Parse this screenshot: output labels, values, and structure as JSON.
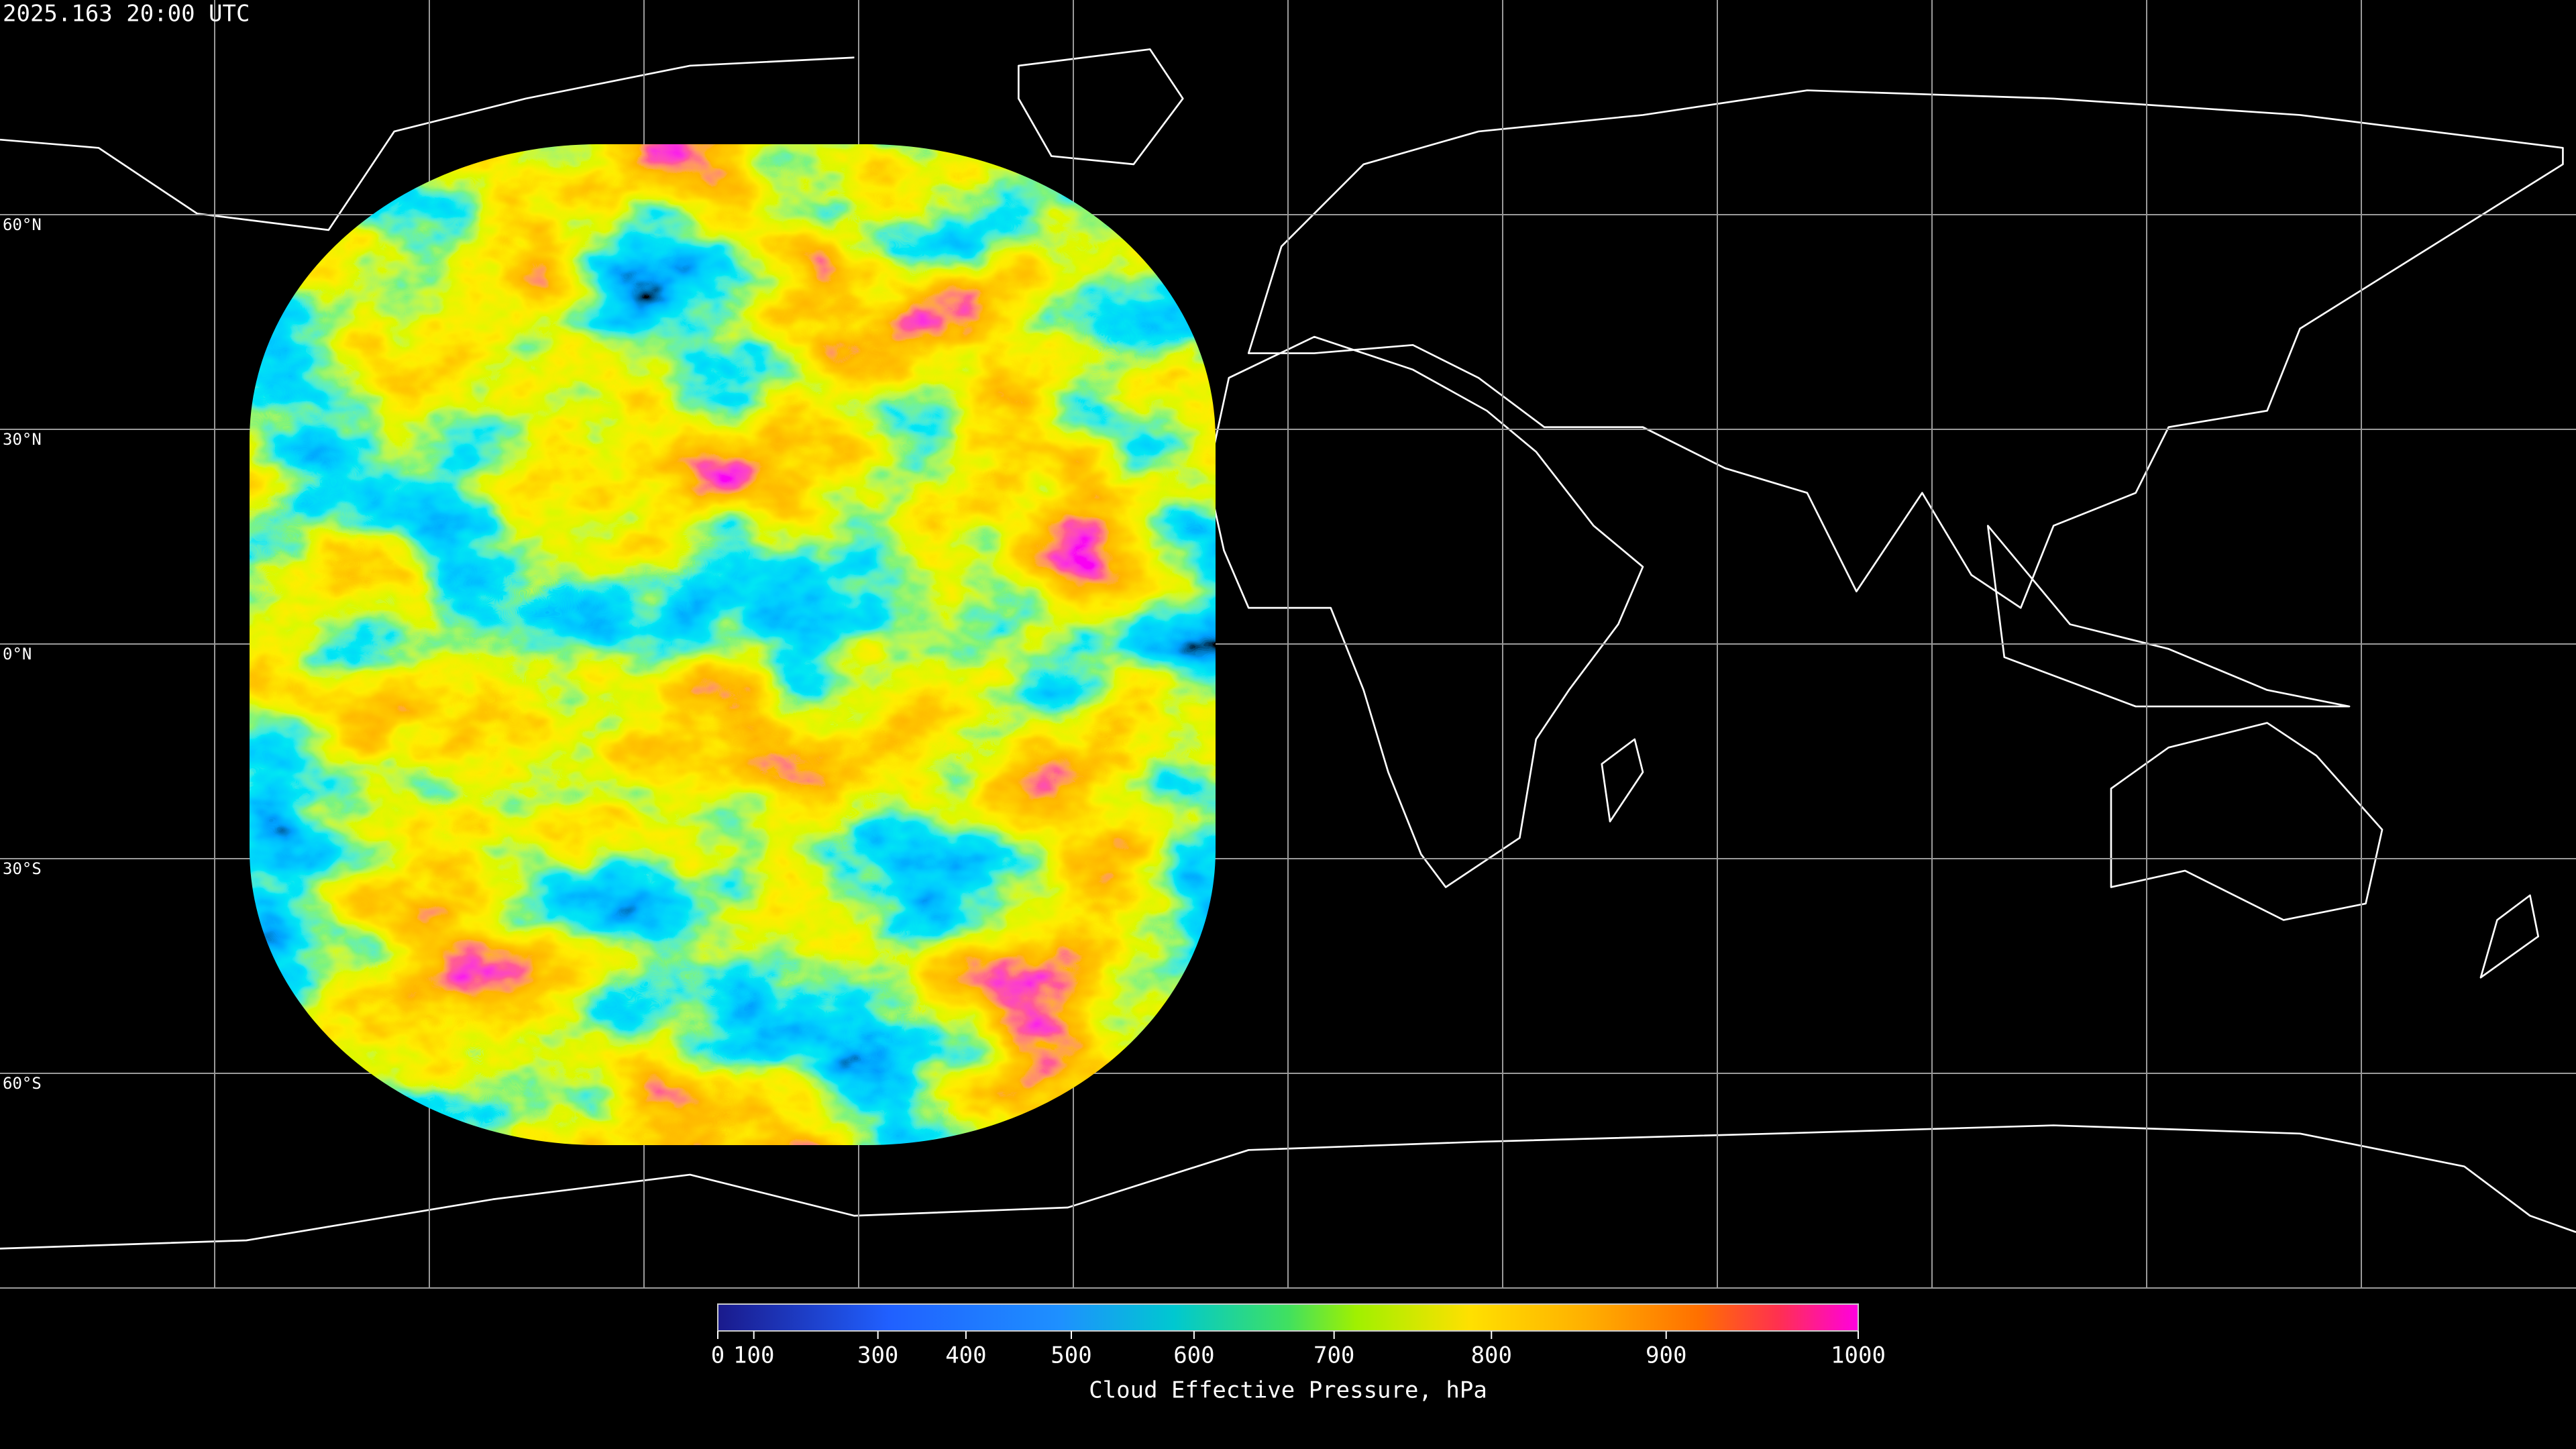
{
  "timestamp": "2025.163 20:00 UTC",
  "latitude_labels": [
    "60°N",
    "30°N",
    "0°N",
    "30°S",
    "60°S"
  ],
  "colorbar": {
    "title": "Cloud Effective Pressure, hPa",
    "range": [
      0,
      1000
    ],
    "ticks": [
      0,
      100,
      300,
      400,
      500,
      600,
      700,
      800,
      900,
      1000
    ]
  }
}
